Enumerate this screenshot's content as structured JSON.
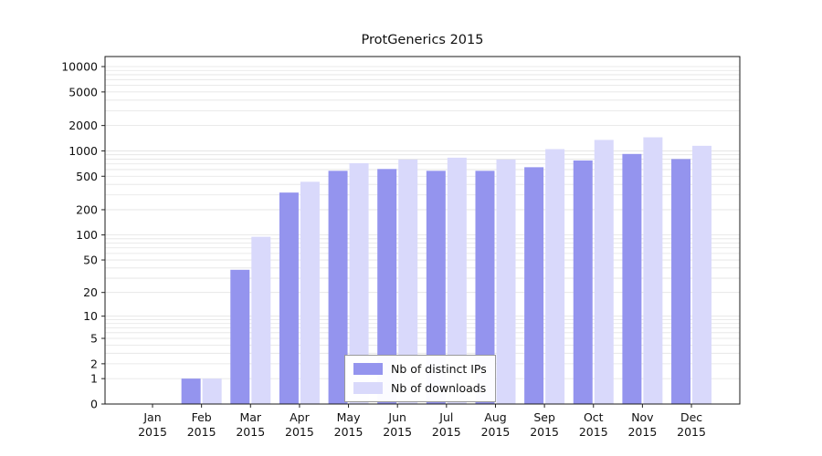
{
  "chart_data": {
    "type": "bar",
    "title": "ProtGenerics 2015",
    "categories": [
      "Jan",
      "Feb",
      "Mar",
      "Apr",
      "May",
      "Jun",
      "Jul",
      "Aug",
      "Sep",
      "Oct",
      "Nov",
      "Dec"
    ],
    "category_year": "2015",
    "yscale": "log10(value+1), zero at baseline",
    "ylim": [
      0,
      10000
    ],
    "yticks": [
      0,
      1,
      2,
      5,
      10,
      20,
      50,
      100,
      200,
      500,
      1000,
      2000,
      5000,
      10000
    ],
    "grid": "horizontal minor log gridlines, light gray",
    "legend_position": "bottom-center inside plot",
    "series": [
      {
        "name": "Nb of distinct IPs",
        "color": "#9494ee",
        "values": [
          0,
          1,
          38,
          320,
          580,
          610,
          580,
          580,
          640,
          770,
          920,
          800
        ]
      },
      {
        "name": "Nb of downloads",
        "color": "#d9d9fb",
        "values": [
          0,
          1,
          95,
          430,
          715,
          790,
          830,
          790,
          1050,
          1350,
          1450,
          1150
        ]
      }
    ]
  }
}
